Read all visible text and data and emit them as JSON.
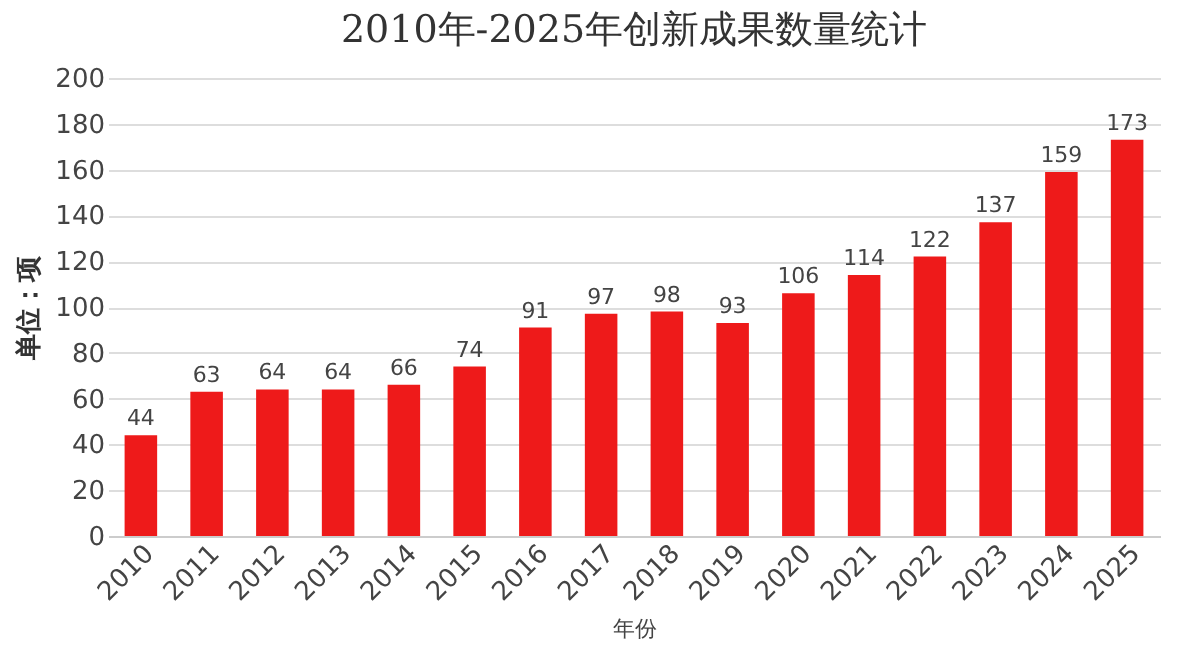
{
  "chart_data": {
    "type": "bar",
    "title": "2010年-2025年创新成果数量统计",
    "xlabel": "年份",
    "ylabel": "单位：项",
    "categories": [
      "2010",
      "2011",
      "2012",
      "2013",
      "2014",
      "2015",
      "2016",
      "2017",
      "2018",
      "2019",
      "2020",
      "2021",
      "2022",
      "2023",
      "2024",
      "2025"
    ],
    "values": [
      44,
      63,
      64,
      64,
      66,
      74,
      91,
      97,
      98,
      93,
      106,
      114,
      122,
      137,
      159,
      173
    ],
    "color": "#ee1a1a",
    "ylim": [
      0,
      200
    ],
    "yticks": [
      0,
      20,
      40,
      60,
      80,
      100,
      120,
      140,
      160,
      180,
      200
    ],
    "grid": "y",
    "data_labels": true
  }
}
